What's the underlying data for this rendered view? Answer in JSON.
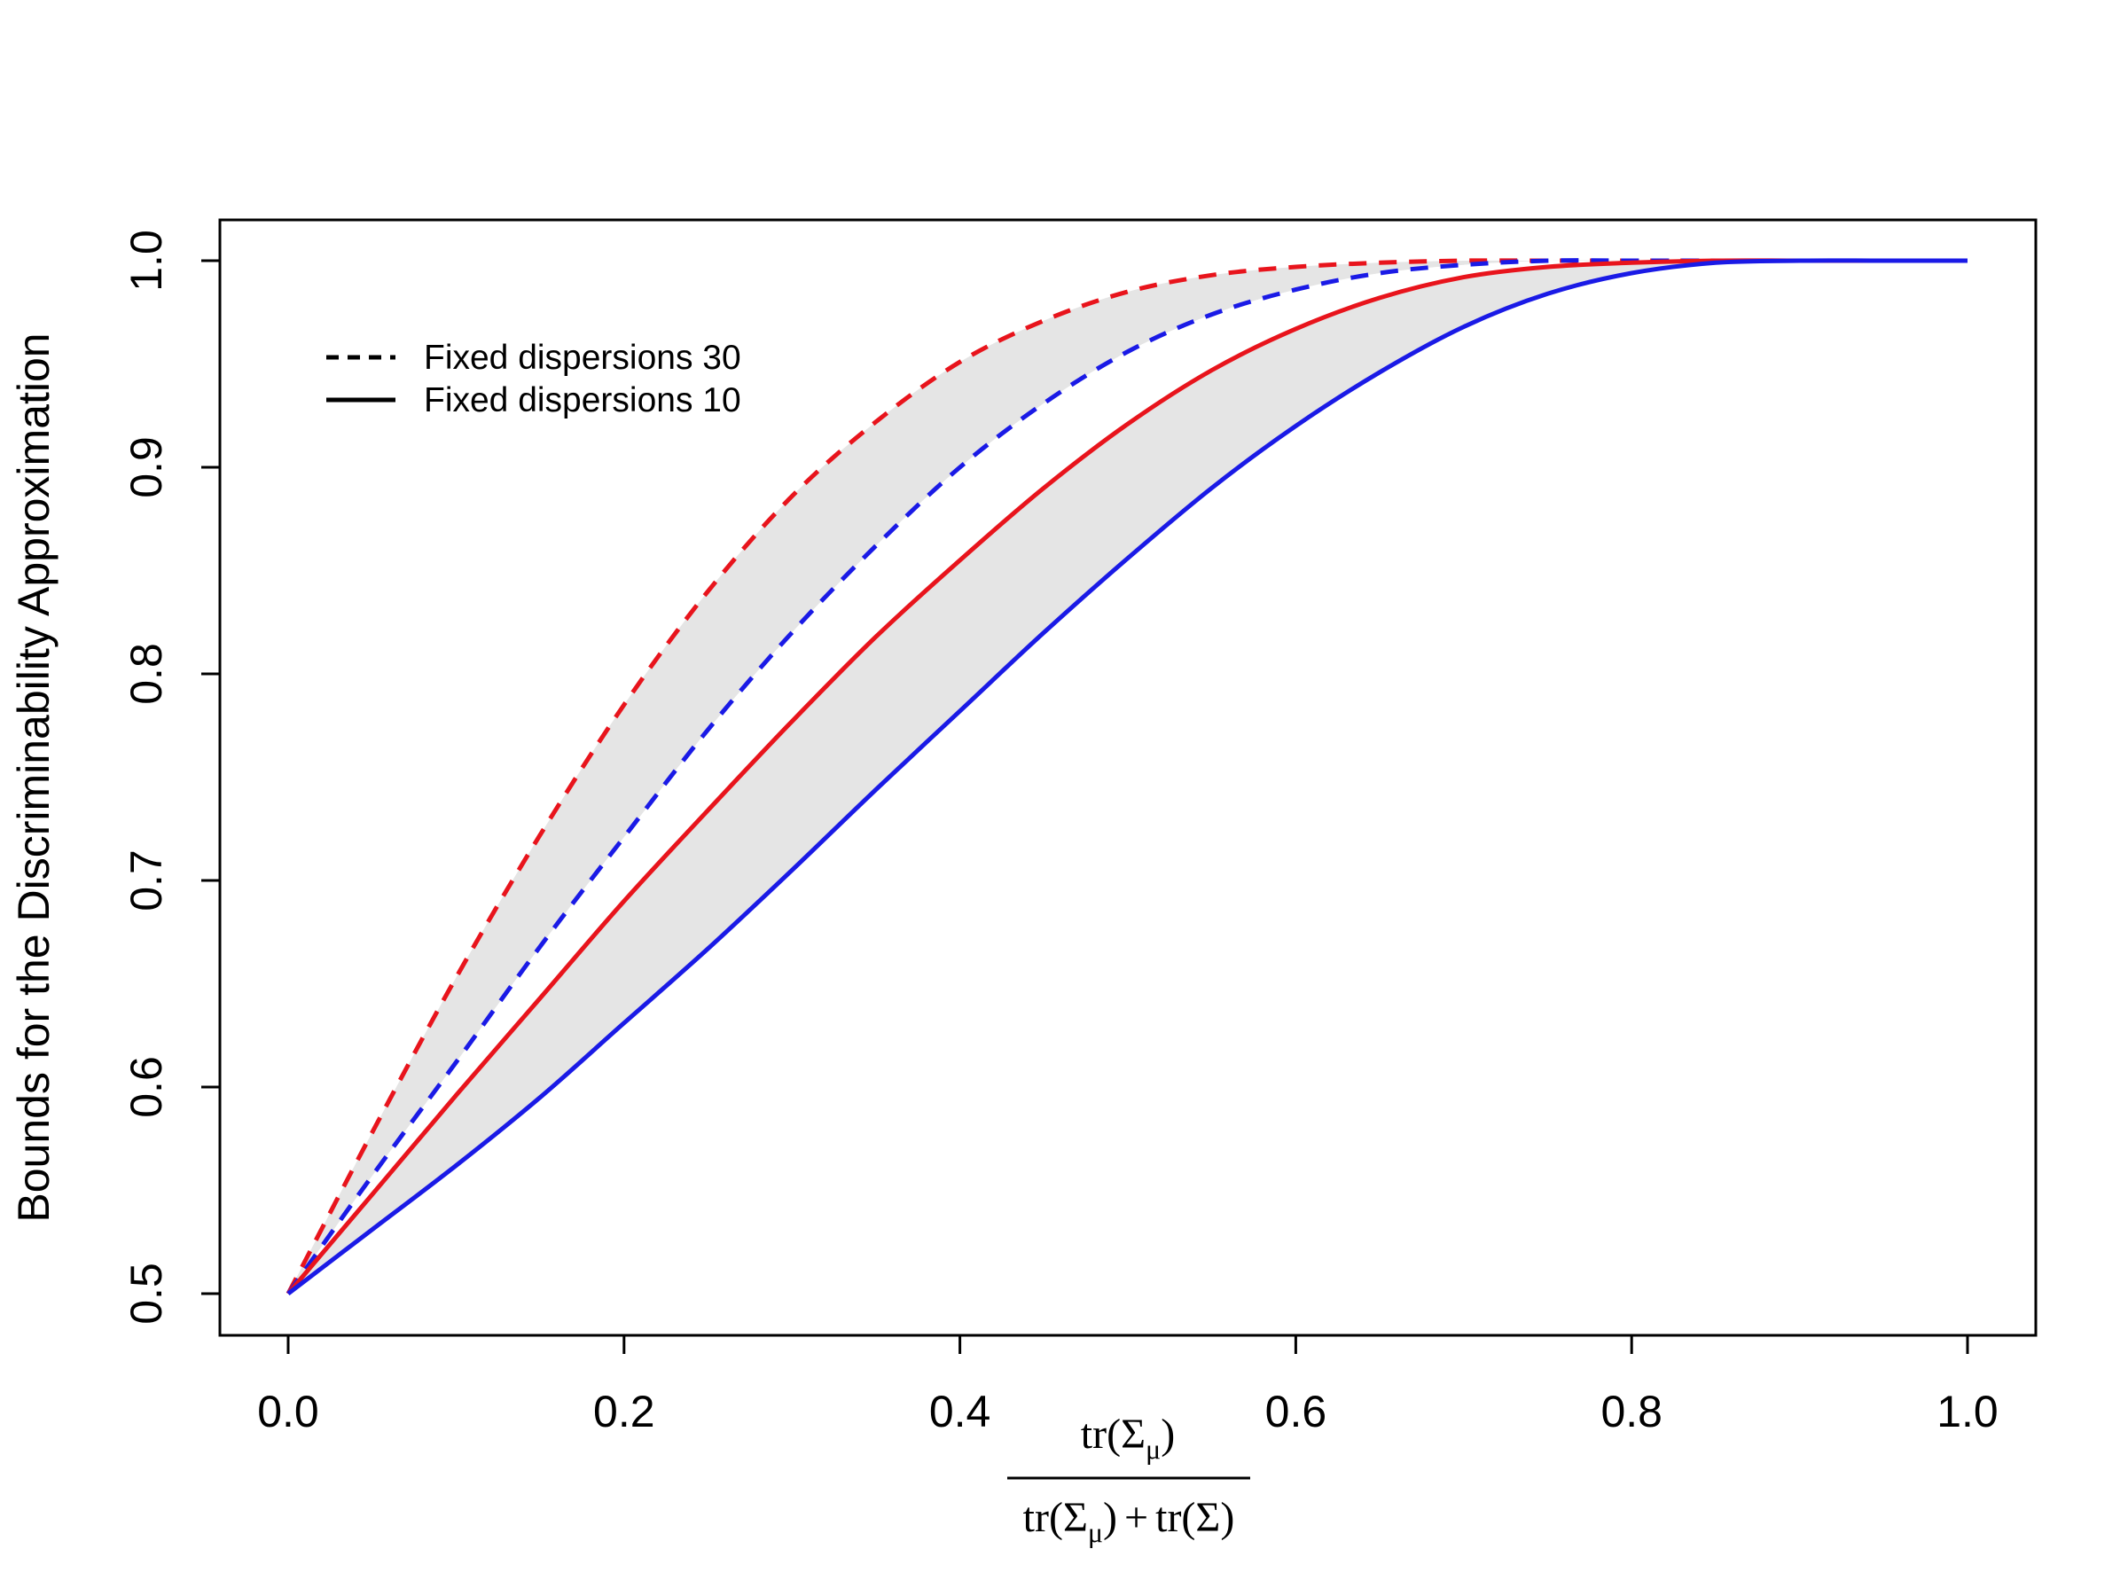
{
  "chart_data": {
    "type": "line",
    "title": "",
    "ylabel": "Bounds for the Discriminability Approximation",
    "xlabel": {
      "numerator": [
        "tr(",
        "Σ",
        "μ",
        ")"
      ],
      "denominator": [
        "tr(",
        "Σ",
        "μ",
        ")",
        "+",
        "tr(",
        "Σ",
        ")"
      ]
    },
    "xlim": [
      0.0,
      1.0
    ],
    "ylim": [
      0.5,
      1.0
    ],
    "x_ticks": [
      "0.0",
      "0.2",
      "0.4",
      "0.6",
      "0.8",
      "1.0"
    ],
    "y_ticks": [
      "0.5",
      "0.6",
      "0.7",
      "0.8",
      "0.9",
      "1.0"
    ],
    "grid": false,
    "legend": {
      "position": "top-left",
      "entries": [
        {
          "label": "Fixed dispersions 30",
          "linestyle": "dashed"
        },
        {
          "label": "Fixed dispersions 10",
          "linestyle": "solid"
        }
      ]
    },
    "colors": {
      "upper": "#e8141c",
      "lower": "#1a1ae6",
      "band": "#e5e5e5"
    },
    "x": [
      0.0,
      0.05,
      0.1,
      0.15,
      0.2,
      0.25,
      0.3,
      0.35,
      0.4,
      0.45,
      0.5,
      0.55,
      0.6,
      0.65,
      0.7,
      0.75,
      0.8,
      0.85,
      0.9,
      0.95,
      1.0
    ],
    "series": [
      {
        "group": "Fixed dispersions 30",
        "bound": "upper",
        "color": "#e8141c",
        "linestyle": "dashed",
        "values": [
          0.5,
          0.578,
          0.653,
          0.722,
          0.785,
          0.84,
          0.886,
          0.922,
          0.951,
          0.971,
          0.985,
          0.993,
          0.997,
          0.999,
          1.0,
          1.0,
          1.0,
          1.0,
          1.0,
          1.0,
          1.0
        ]
      },
      {
        "group": "Fixed dispersions 30",
        "bound": "lower",
        "color": "#1a1ae6",
        "linestyle": "dashed",
        "values": [
          0.5,
          0.557,
          0.612,
          0.668,
          0.721,
          0.773,
          0.82,
          0.862,
          0.9,
          0.931,
          0.956,
          0.974,
          0.986,
          0.994,
          0.998,
          1.0,
          1.0,
          1.0,
          1.0,
          1.0,
          1.0
        ]
      },
      {
        "group": "Fixed dispersions 10",
        "bound": "upper",
        "color": "#e8141c",
        "linestyle": "solid",
        "values": [
          0.5,
          0.548,
          0.596,
          0.643,
          0.69,
          0.734,
          0.777,
          0.818,
          0.855,
          0.89,
          0.921,
          0.947,
          0.967,
          0.982,
          0.992,
          0.997,
          0.999,
          1.0,
          1.0,
          1.0,
          1.0
        ]
      },
      {
        "group": "Fixed dispersions 10",
        "bound": "lower",
        "color": "#1a1ae6",
        "linestyle": "solid",
        "values": [
          0.5,
          0.531,
          0.562,
          0.595,
          0.631,
          0.667,
          0.705,
          0.744,
          0.782,
          0.82,
          0.856,
          0.89,
          0.92,
          0.946,
          0.968,
          0.984,
          0.994,
          0.999,
          1.0,
          1.0,
          1.0
        ]
      }
    ]
  }
}
